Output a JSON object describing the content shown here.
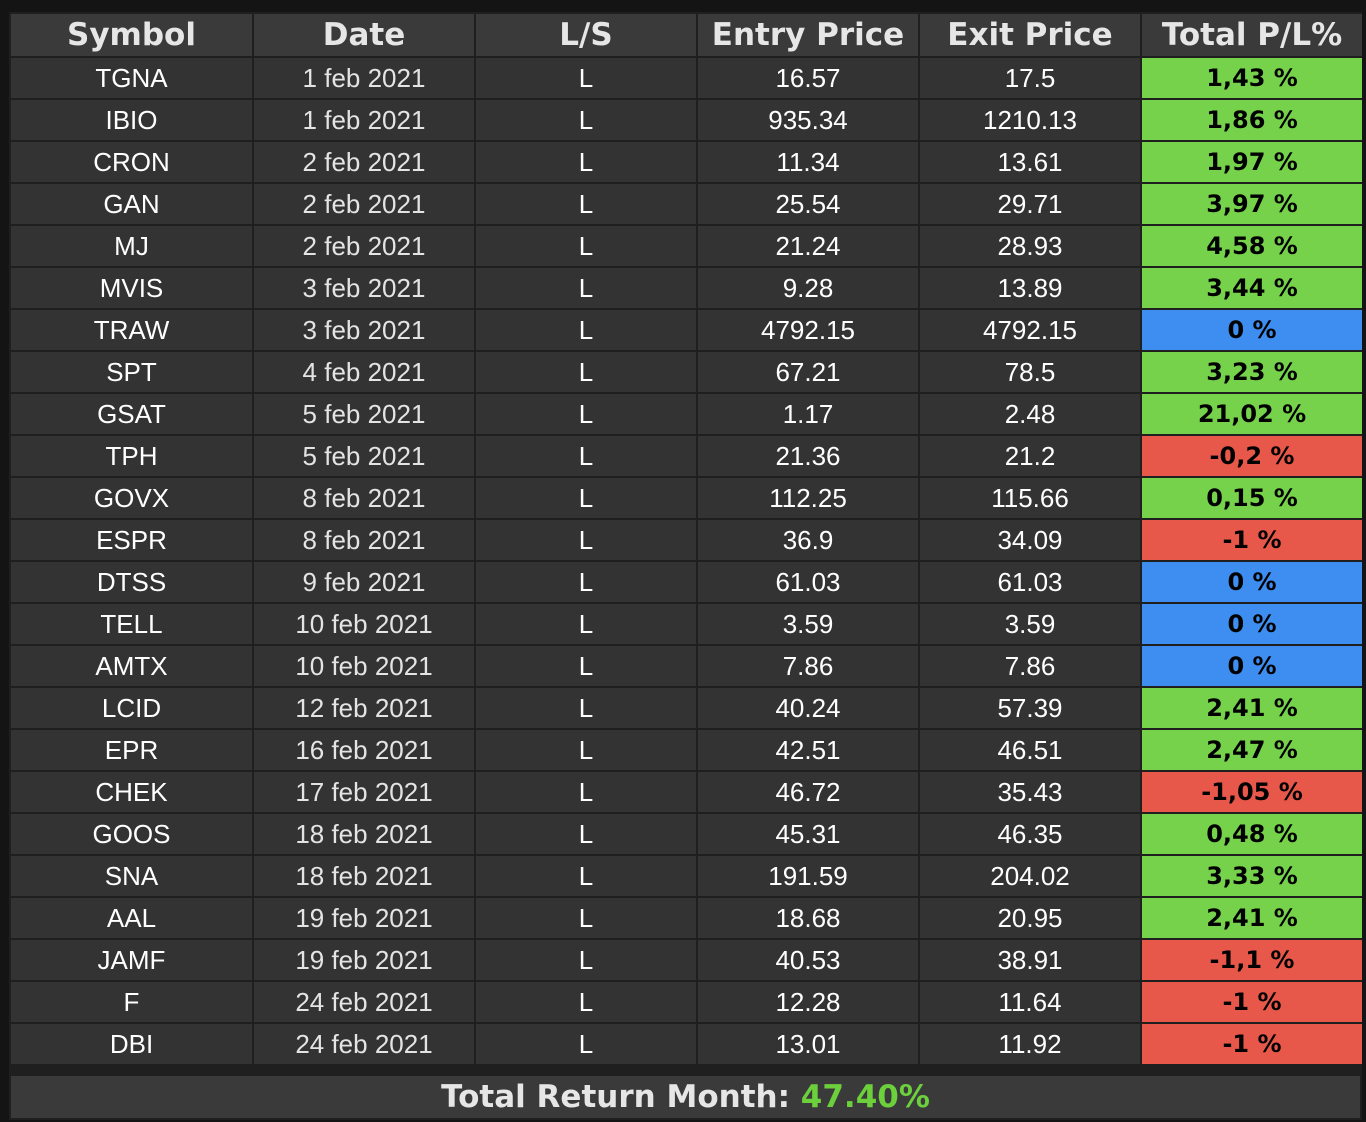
{
  "table": {
    "headers": [
      "Symbol",
      "Date",
      "L/S",
      "Entry Price",
      "Exit Price",
      "Total P/L%"
    ],
    "rows": [
      {
        "symbol": "TGNA",
        "date": "1 feb 2021",
        "ls": "L",
        "entry": "16.57",
        "exit": "17.5",
        "pl": "1,43 %",
        "status": "pos"
      },
      {
        "symbol": "IBIO",
        "date": "1 feb 2021",
        "ls": "L",
        "entry": "935.34",
        "exit": "1210.13",
        "pl": "1,86 %",
        "status": "pos"
      },
      {
        "symbol": "CRON",
        "date": "2 feb 2021",
        "ls": "L",
        "entry": "11.34",
        "exit": "13.61",
        "pl": "1,97 %",
        "status": "pos"
      },
      {
        "symbol": "GAN",
        "date": "2 feb 2021",
        "ls": "L",
        "entry": "25.54",
        "exit": "29.71",
        "pl": "3,97 %",
        "status": "pos"
      },
      {
        "symbol": "MJ",
        "date": "2 feb 2021",
        "ls": "L",
        "entry": "21.24",
        "exit": "28.93",
        "pl": "4,58 %",
        "status": "pos"
      },
      {
        "symbol": "MVIS",
        "date": "3 feb 2021",
        "ls": "L",
        "entry": "9.28",
        "exit": "13.89",
        "pl": "3,44 %",
        "status": "pos"
      },
      {
        "symbol": "TRAW",
        "date": "3 feb 2021",
        "ls": "L",
        "entry": "4792.15",
        "exit": "4792.15",
        "pl": "0 %",
        "status": "neu"
      },
      {
        "symbol": "SPT",
        "date": "4 feb 2021",
        "ls": "L",
        "entry": "67.21",
        "exit": "78.5",
        "pl": "3,23 %",
        "status": "pos"
      },
      {
        "symbol": "GSAT",
        "date": "5 feb 2021",
        "ls": "L",
        "entry": "1.17",
        "exit": "2.48",
        "pl": "21,02 %",
        "status": "pos"
      },
      {
        "symbol": "TPH",
        "date": "5 feb 2021",
        "ls": "L",
        "entry": "21.36",
        "exit": "21.2",
        "pl": "-0,2 %",
        "status": "neg"
      },
      {
        "symbol": "GOVX",
        "date": "8 feb 2021",
        "ls": "L",
        "entry": "112.25",
        "exit": "115.66",
        "pl": "0,15 %",
        "status": "pos"
      },
      {
        "symbol": "ESPR",
        "date": "8 feb 2021",
        "ls": "L",
        "entry": "36.9",
        "exit": "34.09",
        "pl": "-1 %",
        "status": "neg"
      },
      {
        "symbol": "DTSS",
        "date": "9 feb 2021",
        "ls": "L",
        "entry": "61.03",
        "exit": "61.03",
        "pl": "0 %",
        "status": "neu"
      },
      {
        "symbol": "TELL",
        "date": "10 feb 2021",
        "ls": "L",
        "entry": "3.59",
        "exit": "3.59",
        "pl": "0 %",
        "status": "neu"
      },
      {
        "symbol": "AMTX",
        "date": "10 feb 2021",
        "ls": "L",
        "entry": "7.86",
        "exit": "7.86",
        "pl": "0 %",
        "status": "neu"
      },
      {
        "symbol": "LCID",
        "date": "12 feb 2021",
        "ls": "L",
        "entry": "40.24",
        "exit": "57.39",
        "pl": "2,41 %",
        "status": "pos"
      },
      {
        "symbol": "EPR",
        "date": "16 feb 2021",
        "ls": "L",
        "entry": "42.51",
        "exit": "46.51",
        "pl": "2,47 %",
        "status": "pos"
      },
      {
        "symbol": "CHEK",
        "date": "17 feb 2021",
        "ls": "L",
        "entry": "46.72",
        "exit": "35.43",
        "pl": "-1,05 %",
        "status": "neg"
      },
      {
        "symbol": "GOOS",
        "date": "18 feb 2021",
        "ls": "L",
        "entry": "45.31",
        "exit": "46.35",
        "pl": "0,48 %",
        "status": "pos"
      },
      {
        "symbol": "SNA",
        "date": "18 feb 2021",
        "ls": "L",
        "entry": "191.59",
        "exit": "204.02",
        "pl": "3,33 %",
        "status": "pos"
      },
      {
        "symbol": "AAL",
        "date": "19 feb 2021",
        "ls": "L",
        "entry": "18.68",
        "exit": "20.95",
        "pl": "2,41 %",
        "status": "pos"
      },
      {
        "symbol": "JAMF",
        "date": "19 feb 2021",
        "ls": "L",
        "entry": "40.53",
        "exit": "38.91",
        "pl": "-1,1 %",
        "status": "neg"
      },
      {
        "symbol": "F",
        "date": "24 feb 2021",
        "ls": "L",
        "entry": "12.28",
        "exit": "11.64",
        "pl": "-1 %",
        "status": "neg"
      },
      {
        "symbol": "DBI",
        "date": "24 feb 2021",
        "ls": "L",
        "entry": "13.01",
        "exit": "11.92",
        "pl": "-1 %",
        "status": "neg"
      }
    ]
  },
  "footer": {
    "label": "Total Return Month:",
    "value": "47.40%"
  },
  "colors": {
    "positive": "#76d24b",
    "neutral": "#3d8ef0",
    "negative": "#e8584a",
    "total_value": "#6ccf3c"
  }
}
